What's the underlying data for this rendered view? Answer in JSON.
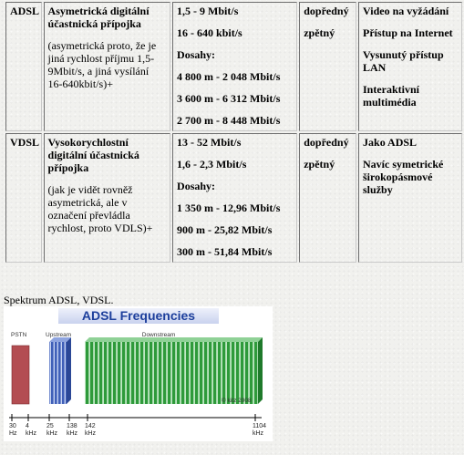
{
  "rows": [
    {
      "tech": "ADSL",
      "name": "Asymetrická digitální účastnická přípojka",
      "note": "(asymetrická proto, že je jiná rychlost příjmu 1,5-9Mbit/s, a jiná vysílání 16-640kbit/s)+",
      "speeds": [
        "1,5 - 9 Mbit/s",
        "16 - 640 kbit/s",
        "Dosahy:",
        "4 800 m - 2 048 Mbit/s",
        "3 600 m - 6 312 Mbit/s",
        "2 700 m - 8 448 Mbit/s"
      ],
      "directions": [
        "dopředný",
        "zpětný"
      ],
      "services": [
        "Video na vyžádání",
        "Přístup na Internet",
        "Vysunutý přístup LAN",
        "Interaktivní multimédia"
      ]
    },
    {
      "tech": "VDSL",
      "name": "Vysokorychlostní digitální účastnická přípojka",
      "note": "(jak je vidět rovněž asymetrická, ale v označení převládla rychlost, proto VDLS)+",
      "speeds": [
        "13 - 52 Mbit/s",
        "1,6 - 2,3 Mbit/s",
        "Dosahy:",
        "1 350 m - 12,96 Mbit/s",
        "900 m - 25,82 Mbit/s",
        "300 m - 51,84 Mbit/s"
      ],
      "directions": [
        "dopředný",
        "zpětný"
      ],
      "services": [
        "Jako ADSL",
        "Navíc symetrické širokopásmové služby"
      ]
    }
  ],
  "caption": "Spektrum  ADSL, VDSL.",
  "figure": {
    "title": "ADSL Frequencies",
    "bands": [
      {
        "name": "PSTN",
        "label": "PSTN",
        "color": "#b34d52"
      },
      {
        "name": "Upstream",
        "label": "Upstream",
        "color": "#3f5fb8"
      },
      {
        "name": "Downstream",
        "label": "Downstream",
        "color": "#2e9a3a"
      }
    ],
    "copyright": "© kitz 2008",
    "ticks": [
      {
        "value": "30",
        "unit": "Hz"
      },
      {
        "value": "4",
        "unit": "kHz"
      },
      {
        "value": "25",
        "unit": "kHz"
      },
      {
        "value": "138",
        "unit": "kHz"
      },
      {
        "value": "142",
        "unit": "kHz"
      },
      {
        "value": "1104",
        "unit": "kHz"
      }
    ]
  }
}
